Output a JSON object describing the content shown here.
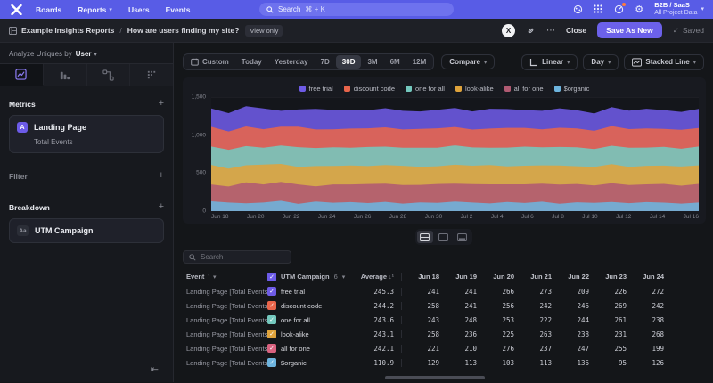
{
  "topnav": {
    "items": [
      {
        "label": "Boards",
        "caret": false
      },
      {
        "label": "Reports",
        "caret": true
      },
      {
        "label": "Users",
        "caret": false
      },
      {
        "label": "Events",
        "caret": false
      }
    ],
    "search": {
      "placeholder": "Search",
      "shortcut": "⌘ + K"
    },
    "project": {
      "name": "B2B / SaaS",
      "scope": "All Project Data"
    }
  },
  "actionbar": {
    "breadcrumb": [
      "Example Insights Reports",
      "How are users finding my site?"
    ],
    "view_badge": "View only",
    "avatar_initial": "X",
    "more_label": "⋯",
    "close_label": "Close",
    "save_as_new_label": "Save As New",
    "saved_check": "✓",
    "saved_label": "Saved"
  },
  "sidebar": {
    "analyze_prefix": "Analyze Uniques by",
    "analyze_value": "User",
    "metrics_label": "Metrics",
    "metric_card": {
      "badge": "A",
      "title": "Landing Page",
      "subtitle": "Total Events"
    },
    "filter_label": "Filter",
    "breakdown_label": "Breakdown",
    "breakdown_card": {
      "badge": "Aa",
      "title": "UTM Campaign"
    }
  },
  "controls": {
    "ranges": [
      {
        "label": "Custom",
        "icon": "calendar"
      },
      {
        "label": "Today"
      },
      {
        "label": "Yesterday"
      },
      {
        "label": "7D"
      },
      {
        "label": "30D"
      },
      {
        "label": "3M"
      },
      {
        "label": "6M"
      },
      {
        "label": "12M"
      }
    ],
    "active_range": "30D",
    "compare_label": "Compare",
    "linear_label": "Linear",
    "granularity_label": "Day",
    "chart_type_label": "Stacked Line"
  },
  "chart_data": {
    "type": "area",
    "stacked": true,
    "title": "",
    "xlabel": "",
    "ylabel": "",
    "ylim": [
      0,
      1500
    ],
    "yticks": [
      {
        "value": 0,
        "label": "0"
      },
      {
        "value": 500,
        "label": "500"
      },
      {
        "value": 1000,
        "label": "1,000"
      },
      {
        "value": 1500,
        "label": "1,500"
      }
    ],
    "grid": true,
    "legend_position": "top-center",
    "x": [
      "Jun 18",
      "Jun 19",
      "Jun 20",
      "Jun 21",
      "Jun 22",
      "Jun 23",
      "Jun 24",
      "Jun 25",
      "Jun 26",
      "Jun 27",
      "Jun 28",
      "Jun 29",
      "Jun 30",
      "Jul 1",
      "Jul 2",
      "Jul 3",
      "Jul 4",
      "Jul 5",
      "Jul 6",
      "Jul 7",
      "Jul 8",
      "Jul 9",
      "Jul 10",
      "Jul 11",
      "Jul 12",
      "Jul 13",
      "Jul 14",
      "Jul 15",
      "Jul 16"
    ],
    "tick_labels": [
      "Jun 18",
      "Jun 20",
      "Jun 22",
      "Jun 24",
      "Jun 26",
      "Jun 28",
      "Jun 30",
      "Jul 2",
      "Jul 4",
      "Jul 6",
      "Jul 8",
      "Jul 10",
      "Jul 12",
      "Jul 14",
      "Jul 16"
    ],
    "stack_bottom_to_top": [
      "$organic",
      "all for one",
      "look-alike",
      "one for all",
      "discount code",
      "free trial"
    ],
    "series": [
      {
        "name": "free trial",
        "color": "#6e5be6",
        "values": [
          241,
          241,
          266,
          273,
          209,
          226,
          272,
          255,
          245,
          238,
          252,
          247,
          230,
          244,
          251,
          239,
          262,
          248,
          235,
          244,
          256,
          241,
          228,
          250,
          243,
          259,
          247,
          236,
          252
        ]
      },
      {
        "name": "discount code",
        "color": "#e8654b",
        "values": [
          258,
          241,
          256,
          242,
          246,
          269,
          242,
          235,
          250,
          244,
          252,
          238,
          247,
          255,
          240,
          233,
          249,
          258,
          244,
          236,
          251,
          246,
          239,
          257,
          242,
          250,
          236,
          248,
          241
        ]
      },
      {
        "name": "one for all",
        "color": "#74c8be",
        "values": [
          243,
          248,
          253,
          222,
          244,
          261,
          238,
          247,
          235,
          252,
          244,
          239,
          250,
          243,
          256,
          241,
          229,
          247,
          252,
          238,
          245,
          250,
          236,
          244,
          255,
          240,
          247,
          234,
          249
        ]
      },
      {
        "name": "look-alike",
        "color": "#dfa33c",
        "values": [
          258,
          236,
          225,
          263,
          238,
          231,
          268,
          244,
          250,
          237,
          246,
          253,
          240,
          235,
          249,
          244,
          256,
          238,
          247,
          241,
          252,
          235,
          244,
          250,
          238,
          246,
          241,
          253,
          245
        ]
      },
      {
        "name": "all for one",
        "color": "#b05a72",
        "values": [
          221,
          210,
          276,
          237,
          247,
          255,
          199,
          240,
          232,
          251,
          238,
          245,
          229,
          248,
          236,
          242,
          250,
          233,
          244,
          237,
          252,
          240,
          228,
          246,
          239,
          233,
          247,
          235,
          244
        ]
      },
      {
        "name": "$organic",
        "color": "#6db4de",
        "values": [
          129,
          113,
          103,
          113,
          136,
          95,
          126,
          110,
          118,
          105,
          122,
          98,
          115,
          108,
          125,
          112,
          101,
          119,
          107,
          124,
          96,
          116,
          109,
          121,
          104,
          118,
          111,
          99,
          113
        ]
      }
    ]
  },
  "table": {
    "search_placeholder": "Search",
    "event_col_label": "Event",
    "segment_col_label": "UTM Campaign",
    "segment_count": "6",
    "average_col_label": "Average",
    "date_columns": [
      "Jun 18",
      "Jun 19",
      "Jun 20",
      "Jun 21",
      "Jun 22",
      "Jun 23",
      "Jun 24"
    ],
    "rows": [
      {
        "event": "Landing Page [Total Events]",
        "segment": "free trial",
        "color": "#6e5be6",
        "average": "245.3",
        "values": [
          "241",
          "241",
          "266",
          "273",
          "209",
          "226",
          "272"
        ]
      },
      {
        "event": "Landing Page [Total Events]",
        "segment": "discount code",
        "color": "#e8654b",
        "average": "244.2",
        "values": [
          "258",
          "241",
          "256",
          "242",
          "246",
          "269",
          "242"
        ]
      },
      {
        "event": "Landing Page [Total Events]",
        "segment": "one for all",
        "color": "#74c8be",
        "average": "243.6",
        "values": [
          "243",
          "248",
          "253",
          "222",
          "244",
          "261",
          "238"
        ]
      },
      {
        "event": "Landing Page [Total Events]",
        "segment": "look-alike",
        "color": "#dfa33c",
        "average": "243.1",
        "values": [
          "258",
          "236",
          "225",
          "263",
          "238",
          "231",
          "268"
        ]
      },
      {
        "event": "Landing Page [Total Events]",
        "segment": "all for one",
        "color": "#d9627f",
        "average": "242.1",
        "values": [
          "221",
          "210",
          "276",
          "237",
          "247",
          "255",
          "199"
        ]
      },
      {
        "event": "Landing Page [Total Events]",
        "segment": "$organic",
        "color": "#6db4de",
        "average": "110.9",
        "values": [
          "129",
          "113",
          "103",
          "113",
          "136",
          "95",
          "126"
        ]
      }
    ]
  }
}
